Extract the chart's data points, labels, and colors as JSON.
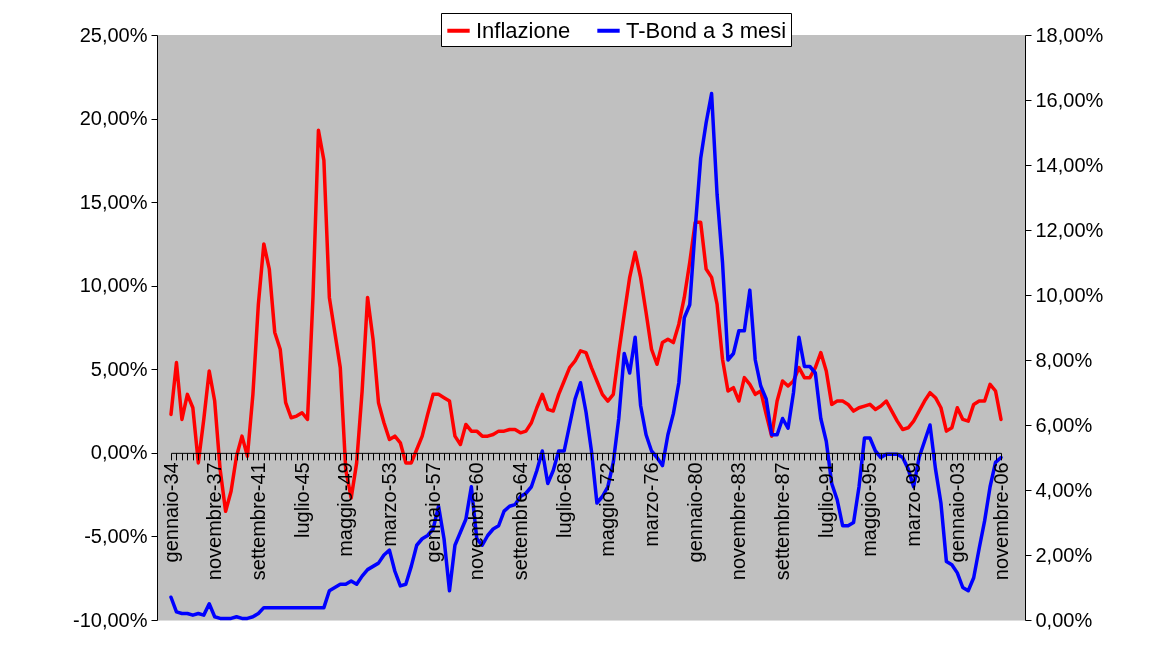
{
  "chart_data": {
    "type": "line",
    "categories": [
      "gennaio-34",
      null,
      null,
      null,
      null,
      null,
      null,
      null,
      "novembre-37",
      null,
      null,
      null,
      null,
      null,
      null,
      null,
      "settembre-41",
      null,
      null,
      null,
      null,
      null,
      null,
      null,
      "luglio-45",
      null,
      null,
      null,
      null,
      null,
      null,
      null,
      "maggio-49",
      null,
      null,
      null,
      null,
      null,
      null,
      null,
      "marzo-53",
      null,
      null,
      null,
      null,
      null,
      null,
      null,
      "gennaio-57",
      null,
      null,
      null,
      null,
      null,
      null,
      null,
      "novembre-60",
      null,
      null,
      null,
      null,
      null,
      null,
      null,
      "settembre-64",
      null,
      null,
      null,
      null,
      null,
      null,
      null,
      "luglio-68",
      null,
      null,
      null,
      null,
      null,
      null,
      null,
      "maggio-72",
      null,
      null,
      null,
      null,
      null,
      null,
      null,
      "marzo-76",
      null,
      null,
      null,
      null,
      null,
      null,
      null,
      "gennaio-80",
      null,
      null,
      null,
      null,
      null,
      null,
      null,
      "novembre-83",
      null,
      null,
      null,
      null,
      null,
      null,
      null,
      "settembre-87",
      null,
      null,
      null,
      null,
      null,
      null,
      null,
      "luglio-91",
      null,
      null,
      null,
      null,
      null,
      null,
      null,
      "maggio-95",
      null,
      null,
      null,
      null,
      null,
      null,
      null,
      "marzo-99",
      null,
      null,
      null,
      null,
      null,
      null,
      null,
      "gennaio-03",
      null,
      null,
      null,
      null,
      null,
      null,
      null,
      "novembre-06"
    ],
    "series": [
      {
        "name": "Inflazione",
        "color": "#ff0000",
        "values": [
          2.3,
          5.4,
          2.0,
          3.5,
          2.7,
          -0.6,
          2.0,
          4.9,
          3.1,
          -1.0,
          -3.5,
          -2.3,
          -0.2,
          1.0,
          -0.2,
          3.5,
          8.9,
          12.5,
          11.0,
          7.2,
          6.2,
          3.0,
          2.1,
          2.2,
          2.4,
          2.0,
          9.3,
          19.3,
          17.5,
          9.3,
          7.2,
          5.1,
          -1.0,
          -2.7,
          -0.6,
          3.7,
          9.3,
          6.8,
          3.0,
          1.8,
          0.8,
          1.0,
          0.6,
          -0.6,
          -0.6,
          0.2,
          1.0,
          2.3,
          3.5,
          3.5,
          3.3,
          3.1,
          1.0,
          0.5,
          1.7,
          1.3,
          1.3,
          1.0,
          1.0,
          1.1,
          1.3,
          1.3,
          1.4,
          1.4,
          1.2,
          1.3,
          1.8,
          2.7,
          3.5,
          2.6,
          2.5,
          3.5,
          4.3,
          5.1,
          5.5,
          6.1,
          6.0,
          5.1,
          4.3,
          3.5,
          3.1,
          3.5,
          6.0,
          8.3,
          10.5,
          12.0,
          10.5,
          8.4,
          6.2,
          5.3,
          6.6,
          6.8,
          6.6,
          7.7,
          9.3,
          11.4,
          13.8,
          13.8,
          11.0,
          10.5,
          8.9,
          5.6,
          3.7,
          3.9,
          3.1,
          4.5,
          4.1,
          3.5,
          3.7,
          2.3,
          1.0,
          3.1,
          4.3,
          4.0,
          4.3,
          5.1,
          4.5,
          4.5,
          5.1,
          6.0,
          4.9,
          2.9,
          3.1,
          3.1,
          2.9,
          2.5,
          2.7,
          2.8,
          2.9,
          2.6,
          2.8,
          3.1,
          2.5,
          1.9,
          1.4,
          1.5,
          1.9,
          2.5,
          3.1,
          3.6,
          3.3,
          2.7,
          1.3,
          1.5,
          2.7,
          2.0,
          1.9,
          2.9,
          3.1,
          3.1,
          4.1,
          3.7,
          2.0
        ]
      },
      {
        "name": "T-Bond a 3 mesi",
        "color": "#0000ff",
        "axis": "y2",
        "values": [
          0.7,
          0.25,
          0.2,
          0.2,
          0.15,
          0.2,
          0.15,
          0.5,
          0.1,
          0.05,
          0.05,
          0.05,
          0.1,
          0.05,
          0.05,
          0.1,
          0.2,
          0.38,
          0.38,
          0.38,
          0.38,
          0.38,
          0.38,
          0.38,
          0.38,
          0.38,
          0.38,
          0.38,
          0.38,
          0.9,
          1.0,
          1.1,
          1.1,
          1.2,
          1.1,
          1.35,
          1.55,
          1.65,
          1.75,
          2.0,
          2.15,
          1.5,
          1.05,
          1.1,
          1.65,
          2.3,
          2.5,
          2.6,
          2.8,
          3.5,
          2.5,
          0.9,
          2.3,
          2.7,
          3.1,
          4.1,
          2.5,
          2.3,
          2.6,
          2.8,
          2.9,
          3.35,
          3.5,
          3.55,
          3.8,
          3.9,
          4.1,
          4.6,
          5.2,
          4.2,
          4.6,
          5.2,
          5.2,
          6.0,
          6.8,
          7.3,
          6.4,
          5.2,
          3.6,
          3.8,
          4.1,
          4.85,
          6.2,
          8.2,
          7.6,
          8.7,
          6.6,
          5.7,
          5.2,
          5.0,
          4.75,
          5.7,
          6.35,
          7.3,
          9.3,
          9.7,
          12.05,
          14.2,
          15.3,
          16.2,
          13.1,
          11.0,
          8.0,
          8.2,
          8.9,
          8.9,
          10.15,
          8.0,
          7.2,
          6.8,
          5.7,
          5.7,
          6.2,
          5.9,
          7.0,
          8.7,
          7.8,
          7.8,
          7.6,
          6.2,
          5.5,
          4.2,
          3.7,
          2.9,
          2.9,
          3.0,
          4.1,
          5.6,
          5.6,
          5.2,
          5.0,
          5.1,
          5.1,
          5.1,
          5.0,
          4.65,
          4.1,
          5.0,
          5.5,
          6.0,
          4.65,
          3.6,
          1.8,
          1.7,
          1.45,
          1.0,
          0.9,
          1.3,
          2.2,
          3.05,
          4.1,
          4.85,
          5.0
        ]
      }
    ],
    "ylim": [
      -10,
      25
    ],
    "yticks": [
      {
        "value": -10,
        "label": "-10,00%"
      },
      {
        "value": -5,
        "label": "-5,00%"
      },
      {
        "value": 0,
        "label": "0,00%"
      },
      {
        "value": 5,
        "label": "5,00%"
      },
      {
        "value": 10,
        "label": "10,00%"
      },
      {
        "value": 15,
        "label": "15,00%"
      },
      {
        "value": 20,
        "label": "20,00%"
      },
      {
        "value": 25,
        "label": "25,00%"
      }
    ],
    "y2lim": [
      0,
      18
    ],
    "y2ticks": [
      {
        "value": 0,
        "label": "0,00%"
      },
      {
        "value": 2,
        "label": "2,00%"
      },
      {
        "value": 4,
        "label": "4,00%"
      },
      {
        "value": 6,
        "label": "6,00%"
      },
      {
        "value": 8,
        "label": "8,00%"
      },
      {
        "value": 10,
        "label": "10,00%"
      },
      {
        "value": 12,
        "label": "12,00%"
      },
      {
        "value": 14,
        "label": "14,00%"
      },
      {
        "value": 16,
        "label": "16,00%"
      },
      {
        "value": 18,
        "label": "18,00%"
      }
    ],
    "legend": "top",
    "grid": false,
    "marker": "none",
    "line_style": "solid"
  }
}
